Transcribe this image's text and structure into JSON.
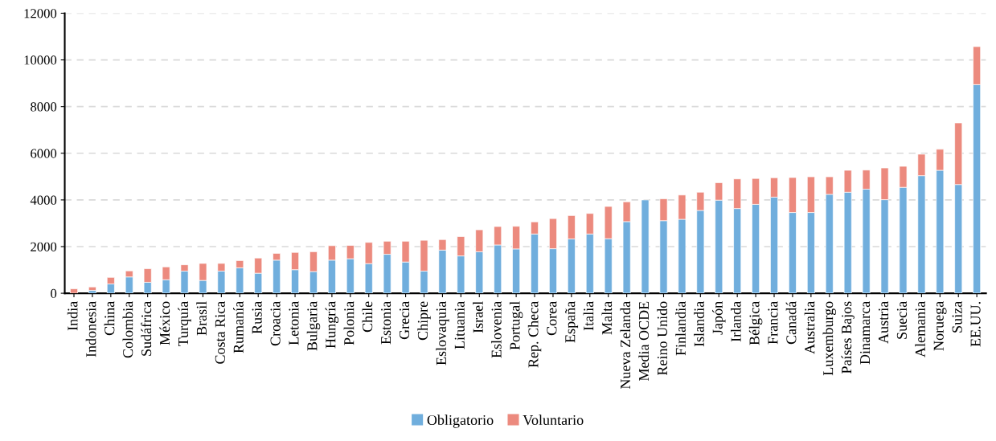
{
  "chart_data": {
    "type": "bar",
    "stacked": true,
    "grid": "y",
    "legend": "bottom",
    "categories": [
      "India",
      "Indonesia",
      "China",
      "Colombia",
      "Sudáfrica",
      "México",
      "Turquía",
      "Brasil",
      "Costa Rica",
      "Rumanía",
      "Rusia",
      "Croacia",
      "Letonia",
      "Bulgaria",
      "Hungría",
      "Polonia",
      "Chile",
      "Estonia",
      "Grecia",
      "Chipre",
      "Eslovaquia",
      "Lituania",
      "Israel",
      "Eslovenia",
      "Portugal",
      "Rep. Checa",
      "Corea",
      "España",
      "Italia",
      "Malta",
      "Nueva Zelanda",
      "Media OCDE",
      "Reino Unido",
      "Finlandia",
      "Islandia",
      "Japón",
      "Irlanda",
      "Bélgica",
      "Francia",
      "Canadá",
      "Australia",
      "Luxemburgo",
      "Países Bajos",
      "Dinamarca",
      "Austria",
      "Suecia",
      "Alemania",
      "Noruega",
      "Suiza",
      "EE.UU."
    ],
    "series": [
      {
        "name": "Obligatorio",
        "color": "#70aedd",
        "values": [
          0,
          120,
          400,
          700,
          470,
          580,
          950,
          550,
          950,
          1090,
          860,
          1420,
          1010,
          930,
          1420,
          1480,
          1270,
          1670,
          1340,
          950,
          1850,
          1600,
          1780,
          2070,
          1900,
          2540,
          1910,
          2330,
          2540,
          2340,
          3070,
          4000,
          3110,
          3170,
          3550,
          3990,
          3630,
          3810,
          4120,
          3460,
          3460,
          4240,
          4330,
          4460,
          4010,
          4540,
          5040,
          5270,
          4660,
          8940
        ]
      },
      {
        "name": "Voluntario",
        "color": "#ec8a7e",
        "values": [
          190,
          150,
          280,
          260,
          580,
          550,
          270,
          730,
          330,
          310,
          650,
          290,
          740,
          850,
          620,
          570,
          910,
          560,
          890,
          1320,
          450,
          830,
          940,
          790,
          970,
          520,
          1290,
          1000,
          880,
          1380,
          850,
          null,
          940,
          1040,
          780,
          750,
          1270,
          1110,
          830,
          1500,
          1530,
          750,
          940,
          820,
          1360,
          900,
          920,
          900,
          2640,
          1630
        ]
      }
    ],
    "ylim": [
      0,
      12000
    ],
    "yticks": [
      0,
      2000,
      4000,
      6000,
      8000,
      10000,
      12000
    ]
  }
}
